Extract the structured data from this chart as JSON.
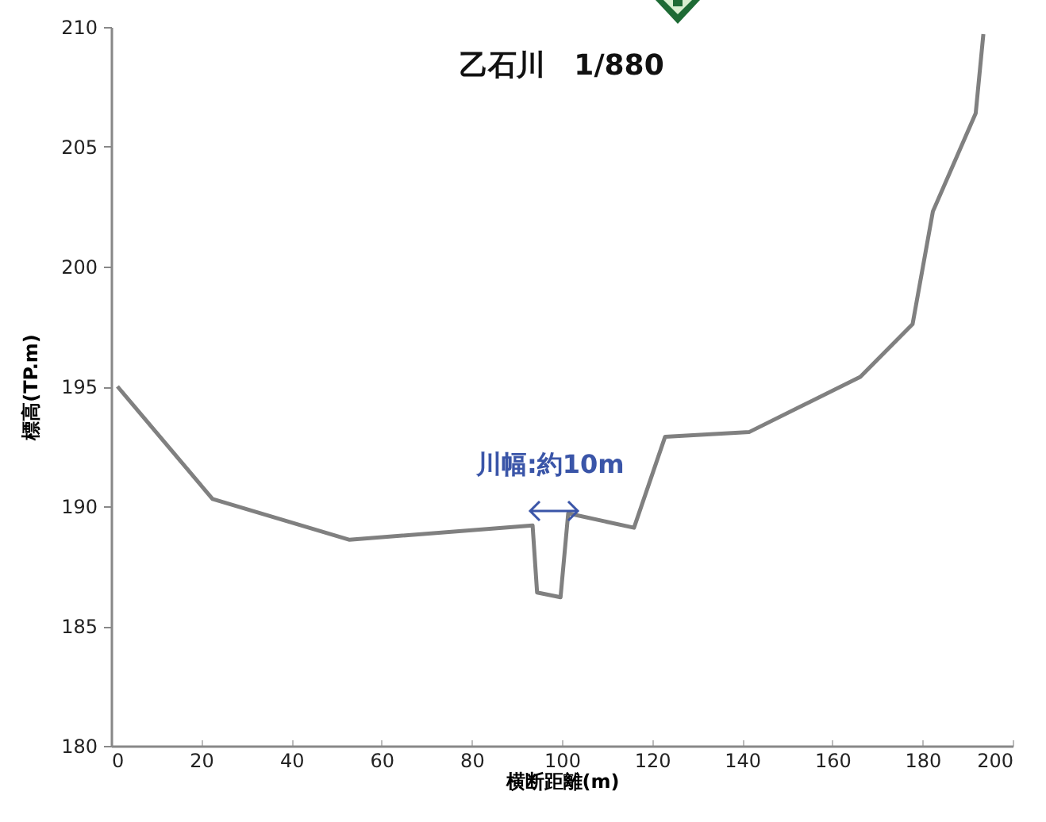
{
  "chart_data": {
    "type": "line",
    "title": "乙石川　1/880",
    "xlabel": "横断距離(m)",
    "ylabel": "標高(TP.m)",
    "x": [
      1.4,
      22.5,
      52.9,
      93.5,
      94.5,
      99.7,
      101.4,
      116,
      122.9,
      141.6,
      166.2,
      177.8,
      182.3,
      191.8,
      193.5
    ],
    "series": [
      {
        "color": "#808080",
        "values": [
          195.0,
          190.3,
          188.6,
          189.2,
          186.4,
          186.2,
          189.7,
          189.1,
          192.9,
          193.1,
          195.4,
          197.6,
          202.3,
          206.4,
          209.7
        ]
      }
    ],
    "xlim": [
      0,
      200
    ],
    "xticks": [
      0,
      20,
      40,
      60,
      80,
      100,
      120,
      140,
      160,
      180,
      200
    ],
    "ylim": [
      180,
      210
    ],
    "yticks": [
      180,
      185,
      190,
      195,
      200,
      205,
      210
    ],
    "annotations": [
      "川幅:約10m"
    ],
    "grid": false,
    "marker": "none",
    "line_style": "solid"
  }
}
